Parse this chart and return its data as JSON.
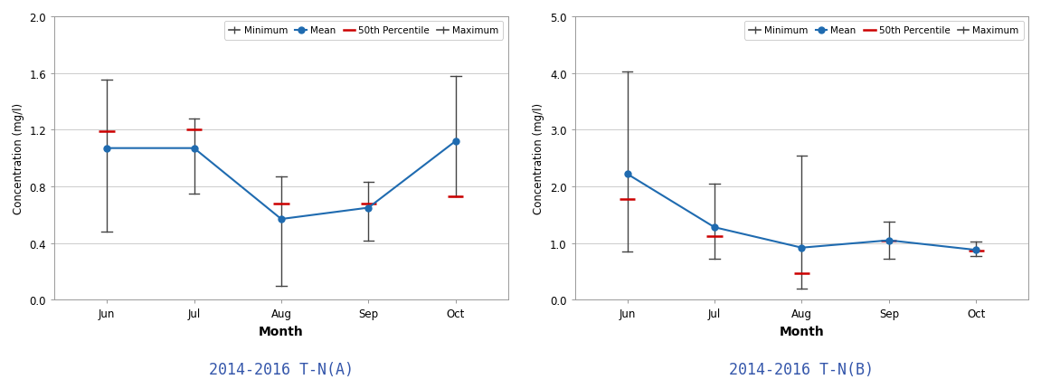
{
  "months": [
    "Jun",
    "Jul",
    "Aug",
    "Sep",
    "Oct"
  ],
  "chart_A": {
    "title": "2014-2016 T-N(A)",
    "ylim": [
      0.0,
      2.0
    ],
    "yticks": [
      0.0,
      0.4,
      0.8,
      1.2,
      1.6,
      2.0
    ],
    "mean": [
      1.07,
      1.07,
      0.57,
      0.65,
      1.12
    ],
    "percentile50": [
      1.19,
      1.2,
      0.68,
      0.68,
      0.73
    ],
    "min": [
      0.48,
      0.75,
      0.1,
      0.42,
      0.73
    ],
    "max": [
      1.55,
      1.28,
      0.87,
      0.83,
      1.58
    ]
  },
  "chart_B": {
    "title": "2014-2016 T-N(B)",
    "ylim": [
      0.0,
      5.0
    ],
    "yticks": [
      0.0,
      1.0,
      2.0,
      3.0,
      4.0,
      5.0
    ],
    "mean": [
      2.22,
      1.28,
      0.92,
      1.05,
      0.88
    ],
    "percentile50": [
      1.77,
      1.13,
      0.47,
      1.05,
      0.87
    ],
    "min": [
      0.85,
      0.72,
      0.2,
      0.73,
      0.77
    ],
    "max": [
      4.02,
      2.05,
      2.55,
      1.38,
      1.02
    ]
  },
  "mean_color": "#1F6BB0",
  "percentile_color": "#CC0000",
  "min_max_color": "#444444",
  "ylabel": "Concentration (mg/l)",
  "xlabel": "Month",
  "background_color": "#ffffff",
  "fig_background": "#ffffff",
  "title_color": "#3355aa",
  "title_fontsize": 12
}
